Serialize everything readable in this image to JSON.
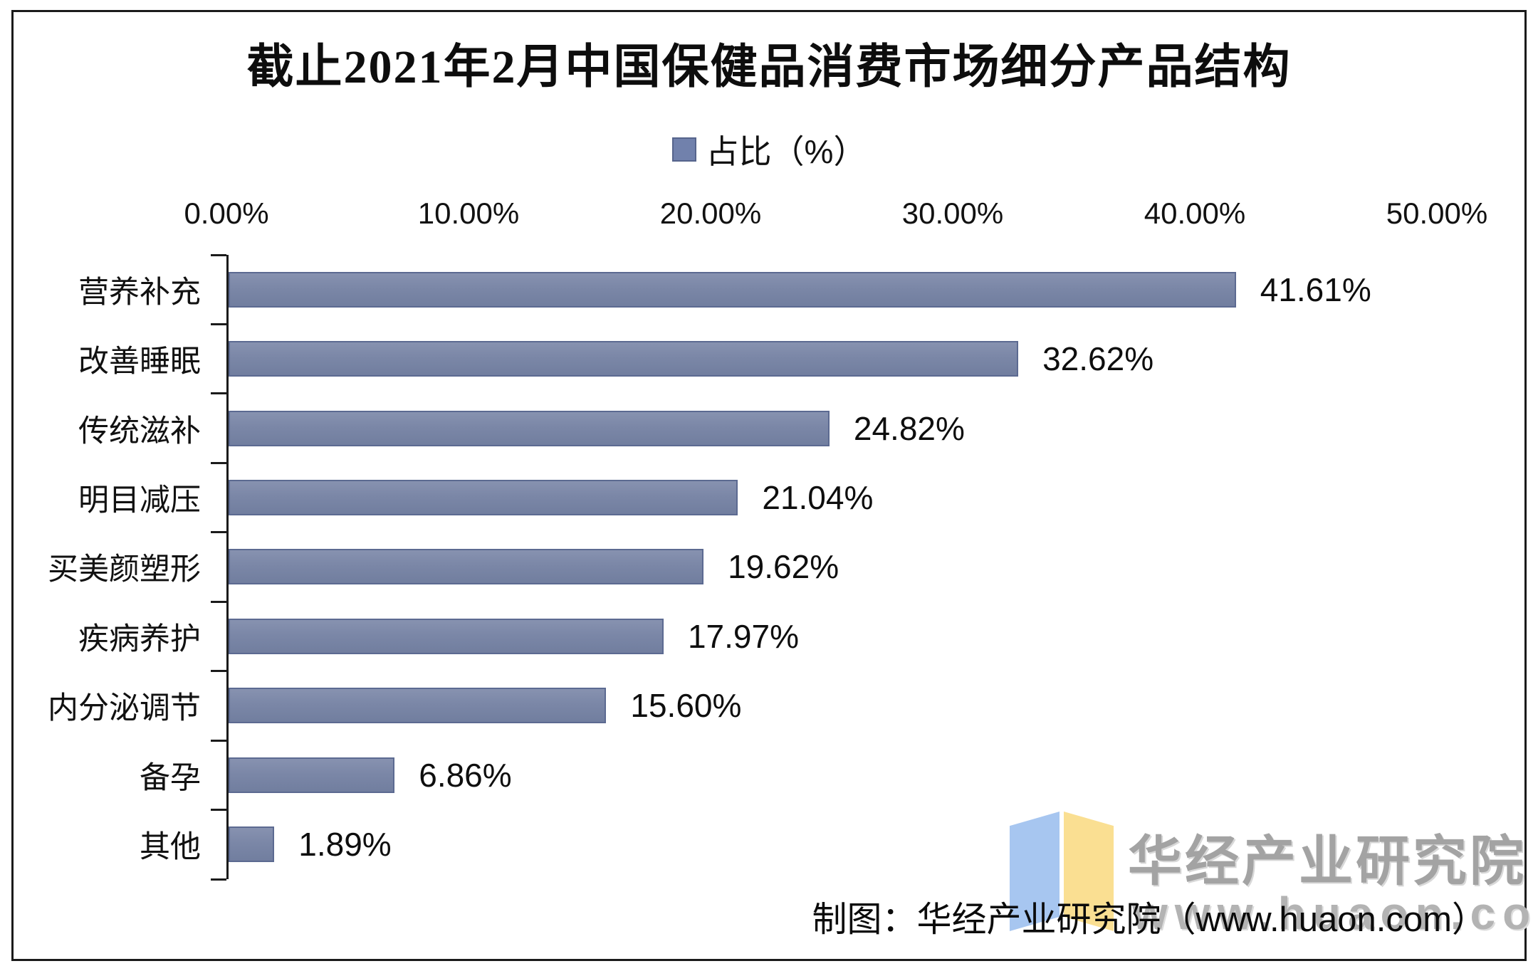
{
  "chart_data": {
    "type": "bar",
    "orientation": "horizontal",
    "title": "截止2021年2月中国保健品消费市场细分产品结构",
    "legend_label": "占比（%）",
    "legend_color": "#7181AC",
    "categories": [
      "营养补充",
      "改善睡眠",
      "传统滋补",
      "明目减压",
      "买美颜塑形",
      "疾病养护",
      "内分泌调节",
      "备孕",
      "其他"
    ],
    "values": [
      41.61,
      32.62,
      24.82,
      21.04,
      19.62,
      17.97,
      15.6,
      6.86,
      1.89
    ],
    "value_labels": [
      "41.61%",
      "32.62%",
      "24.82%",
      "21.04%",
      "19.62%",
      "17.97%",
      "15.60%",
      "6.86%",
      "1.89%"
    ],
    "x_ticks": [
      "0.00%",
      "10.00%",
      "20.00%",
      "30.00%",
      "40.00%",
      "50.00%"
    ],
    "xlim": [
      0,
      50
    ],
    "grid": "off",
    "legend_position": "top-center",
    "bar_color": "#7B87A7",
    "bar_border_color": "#5c6a91"
  },
  "footer": {
    "attribution": "制图：华经产业研究院（www.huaon.com）"
  },
  "watermark": {
    "name": "华经产业研究院",
    "url": "www.huaon.com",
    "logo_left_color": "#A7C6F0",
    "logo_right_color": "#FADF92"
  }
}
